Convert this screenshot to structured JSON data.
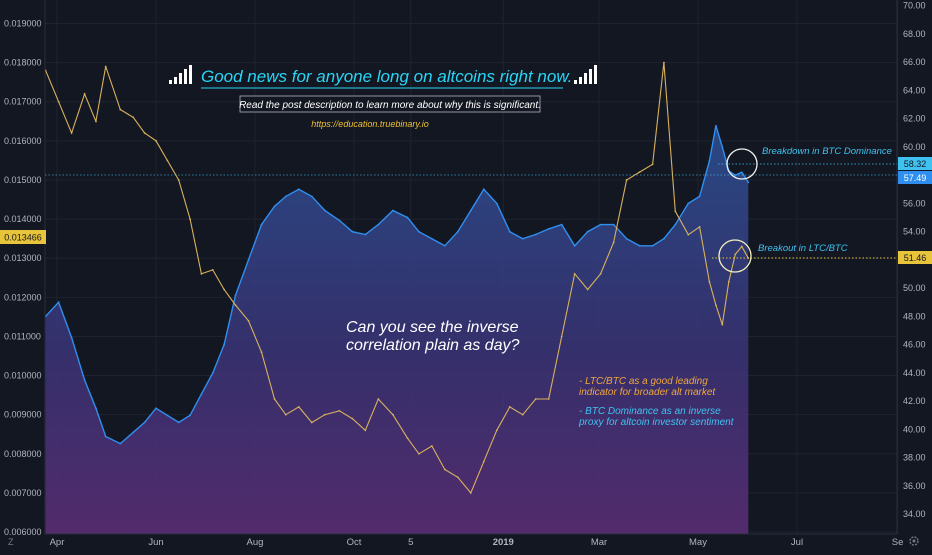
{
  "header": {
    "headline": "Good news for anyone long on altcoins right now.",
    "subtitle": "Read the post description to learn more about why this is significant.",
    "url": "https://education.truebinary.io"
  },
  "annotations": {
    "question_line1": "Can you see the inverse",
    "question_line2": "correlation plain as day?",
    "note1_line1": "- LTC/BTC as a good leading",
    "note1_line2": "indicator for broader alt market",
    "note2_line1": "- BTC Dominance as an inverse",
    "note2_line2": "proxy for altcoin investor sentiment",
    "breakdown": "Breakdown in BTC Dominance",
    "breakout": "Breakout in LTC/BTC"
  },
  "colors": {
    "background": "#131722",
    "ltc_line": "#d9b15c",
    "dominance_line": "#2f8ff0",
    "headline": "#29d5f5",
    "ltc_label": "#f0a63c",
    "dominance_label": "#3fc2f0"
  },
  "chart_data": {
    "type": "line",
    "x_tick_labels": [
      "Apr",
      "Jun",
      "Aug",
      "Oct",
      "5",
      "2019",
      "Mar",
      "May",
      "Jul",
      "Se"
    ],
    "left_axis": {
      "ticks": [
        "0.019000",
        "0.018000",
        "0.017000",
        "0.016000",
        "0.015000",
        "0.014000",
        "0.013000",
        "0.012000",
        "0.011000",
        "0.010000",
        "0.009000",
        "0.008000",
        "0.007000",
        "0.006000"
      ],
      "ylim": [
        0.00595,
        0.0196
      ],
      "current_value_label": "0.013466"
    },
    "right_axis": {
      "ticks": [
        "70.00",
        "68.00",
        "66.00",
        "64.00",
        "62.00",
        "60.00",
        "58.00",
        "56.00",
        "54.00",
        "52.00",
        "50.00",
        "48.00",
        "46.00",
        "44.00",
        "42.00",
        "40.00",
        "38.00",
        "36.00",
        "34.00"
      ],
      "ylim": [
        32.6,
        70.4
      ],
      "price_labels": [
        "58.32",
        "57.49",
        "51.46"
      ]
    },
    "series": [
      {
        "axis": "left",
        "x": [
          "2018-03-25",
          "2018-04-02",
          "2018-04-10",
          "2018-04-18",
          "2018-04-25",
          "2018-05-01",
          "2018-05-10",
          "2018-05-18",
          "2018-05-25",
          "2018-06-01",
          "2018-06-08",
          "2018-06-15",
          "2018-06-22",
          "2018-06-29",
          "2018-07-06",
          "2018-07-13",
          "2018-07-20",
          "2018-07-28",
          "2018-08-05",
          "2018-08-13",
          "2018-08-20",
          "2018-08-28",
          "2018-09-05",
          "2018-09-13",
          "2018-09-22",
          "2018-09-30",
          "2018-10-08",
          "2018-10-16",
          "2018-10-25",
          "2018-11-03",
          "2018-11-10",
          "2018-11-18",
          "2018-11-26",
          "2018-12-04",
          "2018-12-12",
          "2018-12-20",
          "2018-12-28",
          "2019-01-05",
          "2019-01-13",
          "2019-01-21",
          "2019-01-29",
          "2019-02-06",
          "2019-02-14",
          "2019-02-22",
          "2019-03-02",
          "2019-03-10",
          "2019-03-18",
          "2019-03-26",
          "2019-04-03",
          "2019-04-10",
          "2019-04-17",
          "2019-04-25",
          "2019-05-02",
          "2019-05-08",
          "2019-05-12",
          "2019-05-16",
          "2019-05-20",
          "2019-05-24",
          "2019-05-28",
          "2019-06-01"
        ],
        "values": [
          0.0178,
          0.017,
          0.0162,
          0.0172,
          0.0165,
          0.0179,
          0.0168,
          0.0166,
          0.0162,
          0.016,
          0.0155,
          0.015,
          0.014,
          0.0126,
          0.0127,
          0.0122,
          0.0118,
          0.0114,
          0.0106,
          0.0094,
          0.009,
          0.0092,
          0.0088,
          0.009,
          0.0091,
          0.0089,
          0.0086,
          0.0094,
          0.009,
          0.0084,
          0.008,
          0.0082,
          0.0076,
          0.0074,
          0.007,
          0.0078,
          0.0086,
          0.0092,
          0.009,
          0.0094,
          0.0094,
          0.011,
          0.0126,
          0.0122,
          0.0126,
          0.0134,
          0.015,
          0.0152,
          0.0154,
          0.018,
          0.0142,
          0.0136,
          0.0138,
          0.0124,
          0.0118,
          0.0113,
          0.0124,
          0.0131,
          0.0133,
          0.013
        ]
      },
      {
        "axis": "right",
        "x": [
          "2018-03-25",
          "2018-04-02",
          "2018-04-10",
          "2018-04-18",
          "2018-04-25",
          "2018-05-01",
          "2018-05-10",
          "2018-05-18",
          "2018-05-25",
          "2018-06-01",
          "2018-06-08",
          "2018-06-15",
          "2018-06-22",
          "2018-06-29",
          "2018-07-06",
          "2018-07-13",
          "2018-07-20",
          "2018-07-28",
          "2018-08-05",
          "2018-08-13",
          "2018-08-20",
          "2018-08-28",
          "2018-09-05",
          "2018-09-13",
          "2018-09-22",
          "2018-09-30",
          "2018-10-08",
          "2018-10-16",
          "2018-10-25",
          "2018-11-03",
          "2018-11-10",
          "2018-11-18",
          "2018-11-26",
          "2018-12-04",
          "2018-12-12",
          "2018-12-20",
          "2018-12-28",
          "2019-01-05",
          "2019-01-13",
          "2019-01-21",
          "2019-01-29",
          "2019-02-06",
          "2019-02-14",
          "2019-02-22",
          "2019-03-02",
          "2019-03-10",
          "2019-03-18",
          "2019-03-26",
          "2019-04-03",
          "2019-04-10",
          "2019-04-17",
          "2019-04-25",
          "2019-05-02",
          "2019-05-08",
          "2019-05-12",
          "2019-05-16",
          "2019-05-20",
          "2019-05-24",
          "2019-05-28",
          "2019-06-01"
        ],
        "values": [
          48.0,
          49.0,
          46.5,
          43.5,
          41.5,
          39.5,
          39.0,
          39.8,
          40.5,
          41.5,
          41.0,
          40.5,
          41.0,
          42.5,
          44.0,
          46.0,
          49.5,
          52.0,
          54.5,
          55.8,
          56.5,
          57.0,
          56.5,
          55.5,
          54.8,
          54.0,
          53.8,
          54.5,
          55.5,
          55.0,
          54.0,
          53.5,
          53.0,
          54.0,
          55.5,
          57.0,
          56.0,
          54.0,
          53.5,
          53.8,
          54.2,
          54.5,
          53.0,
          54.0,
          54.5,
          54.5,
          53.5,
          53.0,
          53.0,
          53.5,
          54.5,
          56.0,
          56.5,
          59.0,
          61.5,
          60.0,
          58.3,
          58.0,
          58.2,
          57.5
        ]
      }
    ]
  }
}
